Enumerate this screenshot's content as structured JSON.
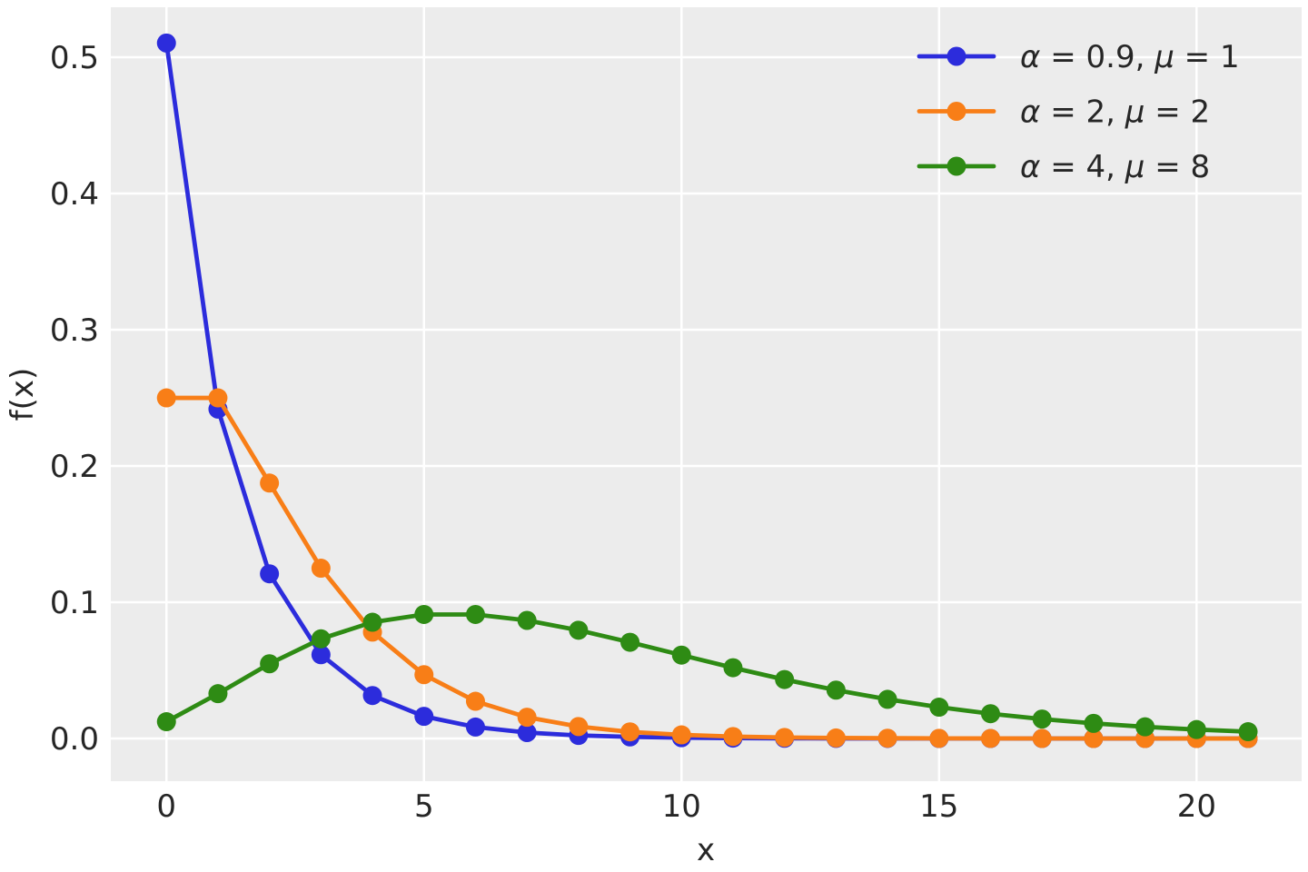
{
  "chart_data": {
    "type": "line",
    "title": "",
    "xlabel": "x",
    "ylabel": "f(x)",
    "x": [
      0,
      1,
      2,
      3,
      4,
      5,
      6,
      7,
      8,
      9,
      10,
      11,
      12,
      13,
      14,
      15,
      16,
      17,
      18,
      19,
      20,
      21
    ],
    "series": [
      {
        "name": "alpha-0.9-mu-1",
        "label": "α = 0.9, μ = 1",
        "color": "#2C2CDC",
        "values": [
          0.510449,
          0.241791,
          0.120898,
          0.061511,
          0.031565,
          0.01628,
          0.008426,
          0.004371,
          0.002272,
          0.001182,
          0.000616,
          0.000321,
          0.000168,
          8.76e-05,
          4.58e-05,
          2.39e-05,
          1.25e-05,
          6.5e-06,
          3.4e-06,
          1.8e-06,
          9e-07,
          5e-07
        ]
      },
      {
        "name": "alpha-2-mu-2",
        "label": "α = 2, μ = 2",
        "color": "#F87E17",
        "values": [
          0.25,
          0.25,
          0.1875,
          0.125,
          0.078125,
          0.046875,
          0.027344,
          0.015625,
          0.008789,
          0.004883,
          0.002686,
          0.001465,
          0.000793,
          0.000427,
          0.000229,
          0.000122,
          6.48e-05,
          3.43e-05,
          1.81e-05,
          9.5e-06,
          5e-06,
          2.6e-06
        ]
      },
      {
        "name": "alpha-4-mu-8",
        "label": "α = 4, μ = 8",
        "color": "#2E8B14",
        "values": [
          0.012346,
          0.032922,
          0.05487,
          0.07316,
          0.085353,
          0.091043,
          0.091043,
          0.086707,
          0.079482,
          0.070651,
          0.06123,
          0.05196,
          0.0433,
          0.035527,
          0.028759,
          0.023007,
          0.018213,
          0.014285,
          0.011111,
          0.008576,
          0.006576,
          0.00501
        ]
      }
    ],
    "xticks": [
      0,
      5,
      10,
      15,
      20
    ],
    "xtick_labels": [
      "0",
      "5",
      "10",
      "15",
      "20"
    ],
    "yticks": [
      0,
      0.1,
      0.2,
      0.3,
      0.4,
      0.5
    ],
    "ytick_labels": [
      "0.0",
      "0.1",
      "0.2",
      "0.3",
      "0.4",
      "0.5"
    ],
    "xlim": [
      -1.08,
      22.04
    ],
    "ylim": [
      -0.0313,
      0.5367
    ],
    "grid": true,
    "legend_position": "upper right",
    "panel_color": "#ECECEC",
    "grid_color": "#FFFFFF",
    "text_color": "#262626"
  }
}
